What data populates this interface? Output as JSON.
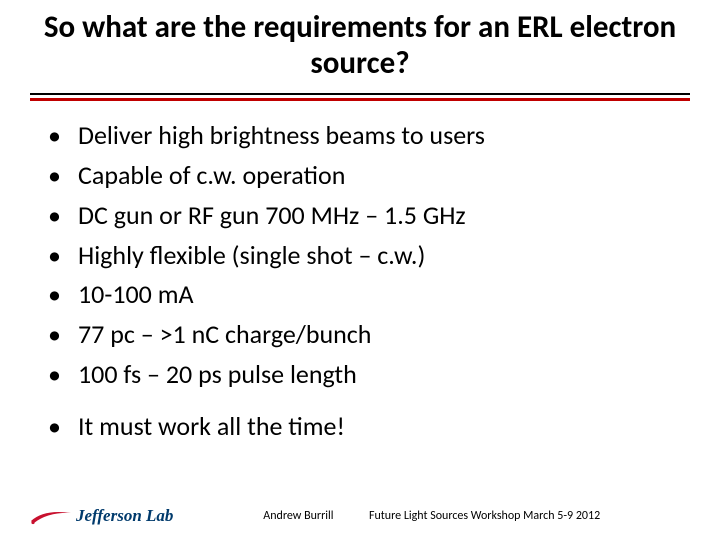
{
  "title": "So what are the requirements for an ERL electron source?",
  "title_fontsize": 31,
  "title_color": "#000000",
  "rule_accent_color": "#c00000",
  "bullets_group1": [
    "Deliver high brightness beams to users",
    "Capable of c.w. operation",
    "DC gun or RF gun 700 MHz – 1.5 GHz",
    "Highly flexible (single shot – c.w.)",
    "10-100 mA",
    "77 pc – >1 nC charge/bunch",
    "100 fs – 20 ps pulse length"
  ],
  "bullets_group2": [
    "It must work all the time!"
  ],
  "bullet_fontsize": 26,
  "logo": {
    "text": "Jefferson Lab",
    "text_color": "#003a6c",
    "swoosh_color": "#c8102e",
    "fontsize": 17
  },
  "footer": {
    "author": "Andrew Burrill",
    "event": "Future Light Sources Workshop March 5-9 2012",
    "fontsize": 12
  },
  "background_color": "#ffffff"
}
